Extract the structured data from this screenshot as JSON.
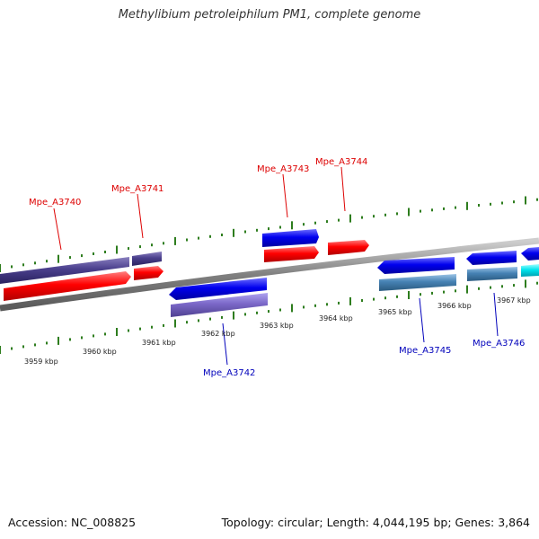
{
  "title": "Methylibium petroleiphilum PM1, complete genome",
  "footer": {
    "accession": "Accession: NC_008825",
    "summary": "Topology: circular; Length: 4,044,195 bp; Genes: 3,864"
  },
  "tick_labels": [
    "3959 kbp",
    "3960 kbp",
    "3961 kbp",
    "3962 kbp",
    "3963 kbp",
    "3964 kbp",
    "3965 kbp",
    "3966 kbp",
    "3967 kbp"
  ],
  "gene_labels": {
    "top": [
      "Mpe_A3740",
      "Mpe_A3741",
      "Mpe_A3743",
      "Mpe_A3744"
    ],
    "bottom": [
      "Mpe_A3742",
      "Mpe_A3745",
      "Mpe_A3746"
    ]
  },
  "colors": {
    "backbone": "#808080",
    "tick": "#2e7d1e",
    "forward_gene": "#ff0000",
    "reverse_gene": "#0000ff",
    "top_label": "#dd0000",
    "bottom_label": "#0000bb",
    "cds_dark": "#4a3f8c",
    "cds_light": "#7b68c8",
    "cds_steel": "#4682b4",
    "cds_cyan": "#00e5ee"
  }
}
